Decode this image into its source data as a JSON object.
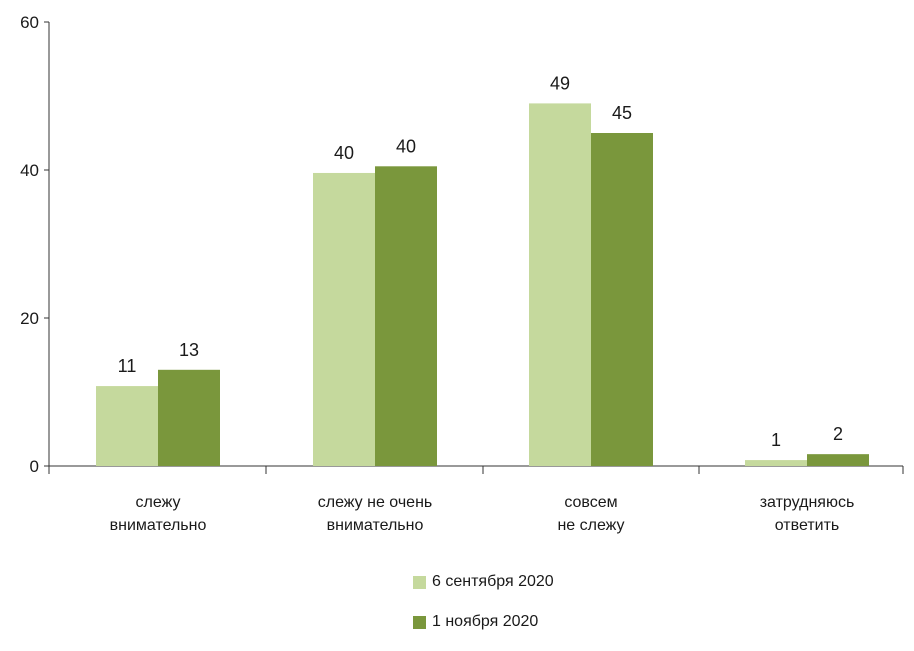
{
  "chart_data": {
    "type": "bar",
    "categories": [
      [
        "слежу",
        "внимательно"
      ],
      [
        "слежу не очень",
        "внимательно"
      ],
      [
        "совсем",
        "не слежу"
      ],
      [
        "затрудняюсь",
        "ответить"
      ]
    ],
    "series": [
      {
        "name": "6 сентября 2020",
        "values": [
          11,
          40,
          49,
          1
        ],
        "color": "#c5d99d"
      },
      {
        "name": "1 ноября 2020",
        "values": [
          13,
          40,
          45,
          2
        ],
        "color": "#7a973c"
      }
    ],
    "bar_heights_estimated": [
      [
        10.8,
        39.6,
        49,
        0.8
      ],
      [
        13,
        40.5,
        45,
        1.6
      ]
    ],
    "yticks": [
      0,
      20,
      40,
      60
    ],
    "ylim": [
      0,
      60
    ],
    "grid": false,
    "legend_position": "bottom-center"
  }
}
